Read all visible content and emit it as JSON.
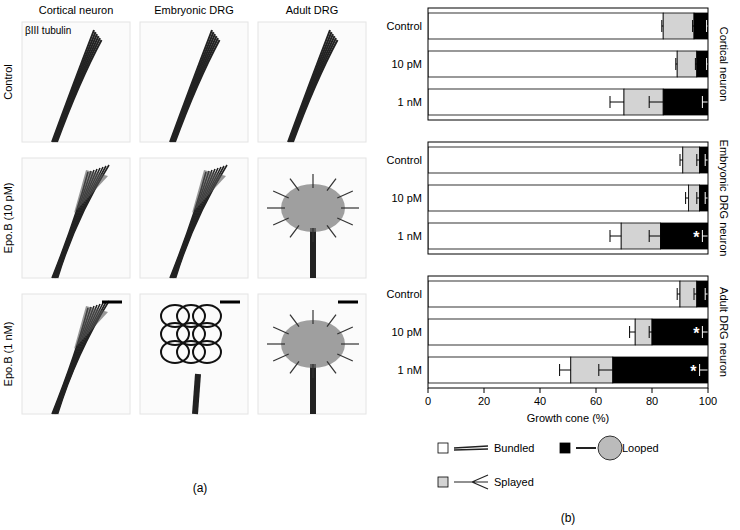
{
  "image_panel": {
    "label": "(a)",
    "stain": "βIII tubulin",
    "columns": [
      "Cortical neuron",
      "Embryonic DRG",
      "Adult DRG"
    ],
    "rows": [
      "Control",
      "Epo.B (10 pM)",
      "Epo.B (1 nM)"
    ]
  },
  "chart_data": {
    "type": "bar",
    "orientation": "horizontal",
    "stacked": true,
    "panel_label": "(b)",
    "xlabel": "Growth cone (%)",
    "xlim": [
      0,
      100
    ],
    "xticks": [
      0,
      20,
      40,
      60,
      80,
      100
    ],
    "legend": "bottom",
    "series": [
      {
        "name": "Bundled",
        "color": "#ffffff"
      },
      {
        "name": "Splayed",
        "color": "#d3d3d3"
      },
      {
        "name": "Looped",
        "color": "#000000"
      }
    ],
    "panels": [
      {
        "title": "Cortical neuron",
        "categories": [
          "Control",
          "10 pM",
          "1 nM"
        ],
        "tick_labels": "y",
        "series": [
          {
            "values": [
              84,
              89,
              70
            ],
            "errors": [
              0.5,
              0.5,
              5
            ]
          },
          {
            "values": [
              11,
              7,
              14
            ],
            "errors": [
              0.5,
              0.5,
              5
            ]
          },
          {
            "values": [
              5,
              4,
              16
            ],
            "errors": [
              0.5,
              0.5,
              2
            ]
          }
        ],
        "annotations": []
      },
      {
        "title": "Embryonic DRG neuron",
        "categories": [
          "Control",
          "10 pM",
          "1 nM"
        ],
        "tick_labels": "y",
        "series": [
          {
            "values": [
              91,
              93,
              69
            ],
            "errors": [
              1,
              1,
              4
            ]
          },
          {
            "values": [
              6,
              4,
              14
            ],
            "errors": [
              1,
              1,
              4
            ]
          },
          {
            "values": [
              3,
              3,
              17
            ],
            "errors": [
              1,
              1,
              2
            ]
          }
        ],
        "annotations": [
          {
            "text": "*",
            "series": 2,
            "category": 2
          }
        ]
      },
      {
        "title": "Adult DRG neuron",
        "categories": [
          "Control",
          "10 pM",
          "1 nM"
        ],
        "series": [
          {
            "values": [
              90,
              74,
              51
            ],
            "errors": [
              1,
              2,
              4
            ]
          },
          {
            "values": [
              6,
              6,
              15
            ],
            "errors": [
              1,
              1,
              5
            ]
          },
          {
            "values": [
              4,
              20,
              34
            ],
            "errors": [
              1,
              2,
              3
            ]
          }
        ],
        "annotations": [
          {
            "text": "*",
            "series": 2,
            "category": 1
          },
          {
            "text": "*",
            "series": 2,
            "category": 2
          }
        ]
      }
    ]
  }
}
